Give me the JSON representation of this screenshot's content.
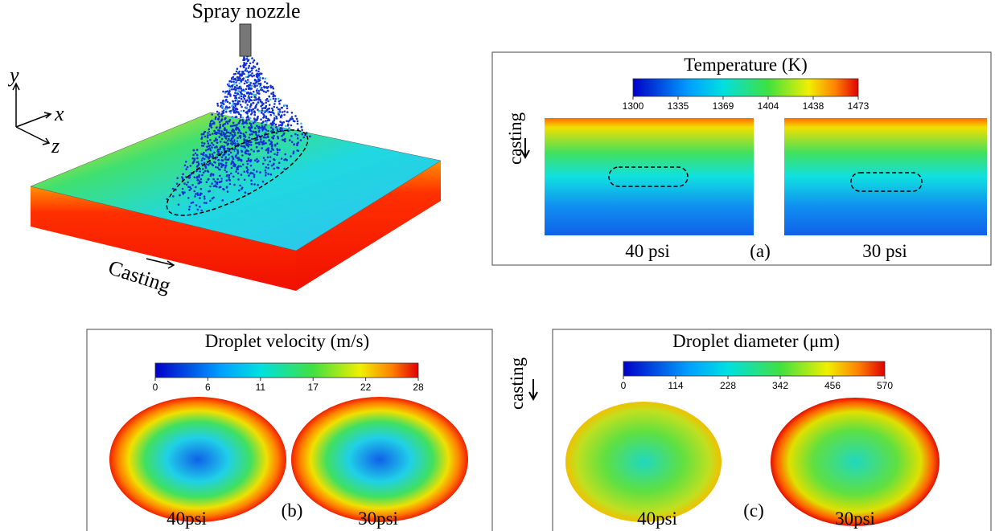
{
  "left": {
    "nozzle_label": "Spray nozzle",
    "axes": {
      "y": "y",
      "x": "x",
      "z": "z"
    },
    "casting": "Casting"
  },
  "panel_a": {
    "direction": "casting",
    "colorbar_title": "Temperature (K)",
    "ticks": [
      "1300",
      "1335",
      "1369",
      "1404",
      "1438",
      "1473"
    ],
    "left_label": "40 psi",
    "panel_label": "(a)",
    "right_label": "30 psi"
  },
  "panel_b": {
    "colorbar_title": "Droplet velocity (m/s)",
    "ticks": [
      "0",
      "6",
      "11",
      "17",
      "22",
      "28"
    ],
    "left_label": "40psi",
    "panel_label": "(b)",
    "right_label": "30psi"
  },
  "panel_c": {
    "direction": "casting",
    "colorbar_title": "Droplet diameter (μm)",
    "ticks": [
      "0",
      "114",
      "228",
      "342",
      "456",
      "570"
    ],
    "left_label": "40psi",
    "panel_label": "(c)",
    "right_label": "30psi"
  }
}
